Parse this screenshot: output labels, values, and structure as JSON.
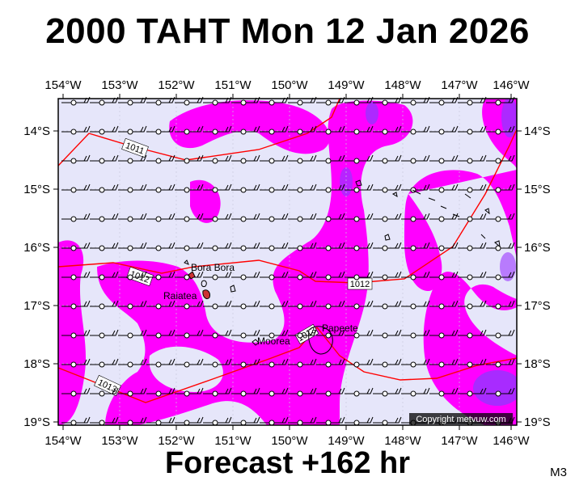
{
  "title": "2000 TAHT Mon 12 Jan 2026",
  "footer": "Forecast +162 hr",
  "model_code": "M3",
  "copyright": "Copyright metvuw.com",
  "axes": {
    "lon_labels": [
      "154°W",
      "153°W",
      "152°W",
      "151°W",
      "150°W",
      "149°W",
      "148°W",
      "147°W",
      "146°W"
    ],
    "lat_labels": [
      "14°S",
      "15°S",
      "16°S",
      "17°S",
      "18°S",
      "19°S"
    ]
  },
  "places": [
    {
      "name": "Bora Bora"
    },
    {
      "name": "Raiatea"
    },
    {
      "name": "Moorea"
    },
    {
      "name": "Papeete"
    }
  ],
  "isobars": [
    {
      "value": "1011"
    },
    {
      "value": "1012"
    },
    {
      "value": "1012"
    },
    {
      "value": "1013"
    },
    {
      "value": "1013"
    }
  ],
  "colors": {
    "background_field": "#e6e6fa",
    "rain_magenta": "#ff00ff",
    "rain_heavy": "#9933ff",
    "isobar": "#ff0000",
    "land": "#000000"
  }
}
